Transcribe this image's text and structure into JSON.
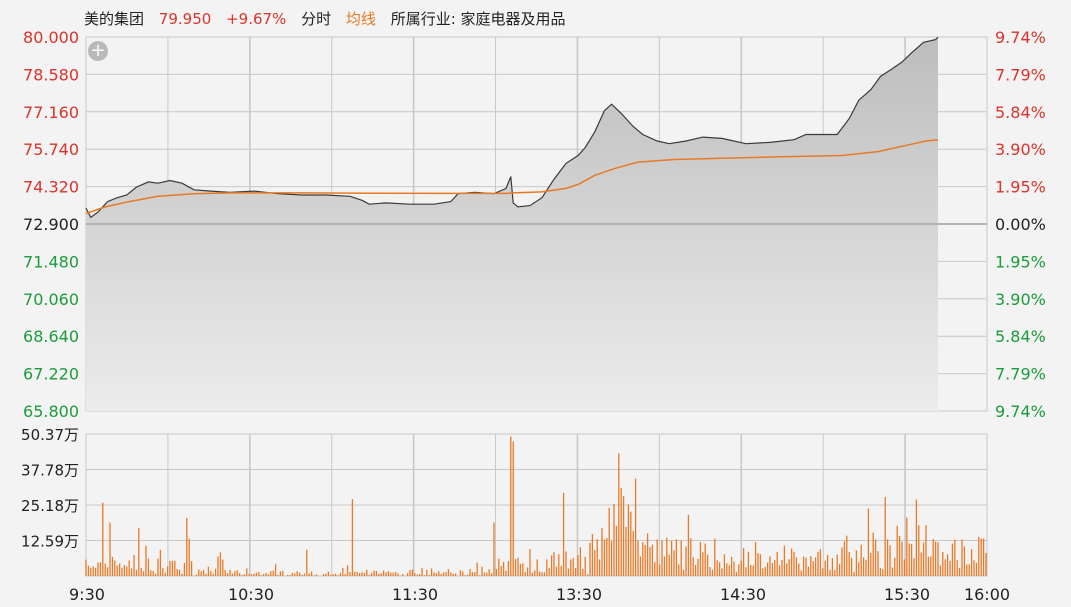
{
  "header": {
    "stock_name": "美的集团",
    "price": "79.950",
    "change_pct": "+9.67%",
    "tab_intraday": "分时",
    "avg_line_label": "均线",
    "industry": "所属行业: 家庭电器及用品"
  },
  "colors": {
    "up": "#d9342b",
    "down": "#1c9c3c",
    "price_line": "#3a3a3a",
    "avg_line": "#e87a26",
    "volume_bar": "#e87a26",
    "area_fill": "#c9c9c9",
    "grid": "#c8c8c8",
    "background": "#f3f3f3"
  },
  "chart_data": [
    {
      "type": "line",
      "name": "intraday_price",
      "prev_close": 72.9,
      "ylim": [
        65.8,
        80.0
      ],
      "y_ticks": [
        "80.000",
        "78.580",
        "77.160",
        "75.740",
        "74.320",
        "72.900",
        "71.480",
        "70.060",
        "68.640",
        "67.220",
        "65.800"
      ],
      "pct_ticks": [
        "9.74%",
        "7.79%",
        "5.84%",
        "3.90%",
        "1.95%",
        "0.00%",
        "1.95%",
        "3.90%",
        "5.84%",
        "7.79%",
        "9.74%"
      ],
      "x_ticks": [
        "9:30",
        "10:30",
        "11:30",
        "13:30",
        "14:30",
        "15:30",
        "16:00"
      ],
      "price": [
        [
          0,
          73.5
        ],
        [
          2,
          73.15
        ],
        [
          5,
          73.35
        ],
        [
          9,
          73.75
        ],
        [
          13,
          73.9
        ],
        [
          17,
          74.0
        ],
        [
          21,
          74.3
        ],
        [
          26,
          74.5
        ],
        [
          30,
          74.45
        ],
        [
          35,
          74.55
        ],
        [
          40,
          74.45
        ],
        [
          45,
          74.2
        ],
        [
          52,
          74.15
        ],
        [
          60,
          74.1
        ],
        [
          70,
          74.15
        ],
        [
          80,
          74.05
        ],
        [
          90,
          74.0
        ],
        [
          100,
          74.0
        ],
        [
          110,
          73.95
        ],
        [
          115,
          73.8
        ],
        [
          118,
          73.65
        ],
        [
          125,
          73.7
        ],
        [
          135,
          73.65
        ],
        [
          145,
          73.65
        ],
        [
          152,
          73.75
        ],
        [
          155,
          74.05
        ],
        [
          162,
          74.1
        ],
        [
          170,
          74.05
        ],
        [
          175,
          74.25
        ],
        [
          177,
          74.7
        ],
        [
          178,
          73.7
        ],
        [
          180,
          73.55
        ],
        [
          185,
          73.6
        ],
        [
          190,
          73.9
        ],
        [
          195,
          74.6
        ],
        [
          200,
          75.2
        ],
        [
          205,
          75.5
        ],
        [
          208,
          75.8
        ],
        [
          212,
          76.4
        ],
        [
          216,
          77.2
        ],
        [
          219,
          77.45
        ],
        [
          223,
          77.1
        ],
        [
          228,
          76.6
        ],
        [
          232,
          76.3
        ],
        [
          238,
          76.05
        ],
        [
          243,
          75.95
        ],
        [
          250,
          76.05
        ],
        [
          257,
          76.2
        ],
        [
          265,
          76.15
        ],
        [
          275,
          75.95
        ],
        [
          285,
          76.0
        ],
        [
          295,
          76.1
        ],
        [
          300,
          76.3
        ],
        [
          305,
          76.3
        ],
        [
          313,
          76.3
        ],
        [
          318,
          76.9
        ],
        [
          322,
          77.6
        ],
        [
          327,
          78.0
        ],
        [
          331,
          78.5
        ],
        [
          336,
          78.8
        ],
        [
          340,
          79.05
        ],
        [
          344,
          79.4
        ],
        [
          349,
          79.8
        ],
        [
          354,
          79.9
        ],
        [
          355,
          80.0
        ]
      ],
      "avg": [
        [
          0,
          73.3
        ],
        [
          8,
          73.55
        ],
        [
          18,
          73.75
        ],
        [
          30,
          73.95
        ],
        [
          45,
          74.05
        ],
        [
          60,
          74.08
        ],
        [
          90,
          74.08
        ],
        [
          120,
          74.07
        ],
        [
          150,
          74.06
        ],
        [
          175,
          74.06
        ],
        [
          178,
          74.08
        ],
        [
          190,
          74.12
        ],
        [
          200,
          74.25
        ],
        [
          205,
          74.4
        ],
        [
          212,
          74.75
        ],
        [
          220,
          75.0
        ],
        [
          230,
          75.25
        ],
        [
          245,
          75.35
        ],
        [
          265,
          75.4
        ],
        [
          290,
          75.45
        ],
        [
          315,
          75.5
        ],
        [
          330,
          75.65
        ],
        [
          340,
          75.85
        ],
        [
          350,
          76.05
        ],
        [
          355,
          76.1
        ]
      ]
    },
    {
      "type": "bar",
      "name": "volume",
      "unit": "万",
      "ylim": [
        0,
        50.37
      ],
      "y_ticks": [
        "50.37万",
        "37.78万",
        "25.18万",
        "12.59万"
      ],
      "volume_values": [
        5.8,
        3.7,
        2.9,
        3.4,
        2.9,
        4.8,
        4.8,
        26.0,
        4.4,
        3.1,
        19.0,
        6.8,
        5.5,
        3.7,
        4.4,
        2.9,
        3.9,
        3.3,
        5.5,
        2.7,
        7.4,
        2.2,
        17.0,
        2.9,
        1.7,
        10.8,
        6.2,
        2.1,
        1.8,
        0.8,
        6.2,
        9.3,
        2.8,
        1.1,
        3.4,
        5.4,
        5.4,
        5.4,
        2.5,
        2.2,
        0.8,
        4.6,
        20.6,
        13.2,
        5.3,
        0.1,
        0.5,
        2.3,
        1.7,
        2.2,
        0.9,
        3.3,
        1.8,
        0.8,
        2.6,
        6.9,
        8.4,
        5.8,
        2.1,
        1.0,
        2.2,
        0.9,
        1.7,
        2.1,
        1.0,
        0.4,
        0.6,
        2.7,
        0.8,
        0.6,
        0.8,
        1.2,
        1.5,
        0.3,
        0.7,
        1.1,
        0.6,
        1.7,
        1.9,
        4.2,
        0.4,
        1.7,
        1.8,
        0.0,
        0.4,
        0.4,
        1.1,
        0.9,
        1.7,
        1.2,
        0.4,
        0.9,
        9.3,
        0.9,
        1.6,
        0.2,
        0.6,
        0.1,
        0.1,
        0.7,
        0.8,
        1.6,
        0.4,
        0.6,
        0.8,
        0.3,
        1.1,
        2.9,
        0.7,
        3.8,
        1.4,
        27.3,
        1.5,
        1.4,
        1.0,
        1.3,
        1.1,
        2.2,
        0.4,
        1.1,
        1.9,
        1.8,
        0.8,
        1.0,
        1.9,
        1.3,
        1.7,
        1.2,
        1.2,
        1.5,
        0.9,
        0.1,
        0.7,
        0.1,
        1.1,
        2.1,
        2.3,
        1.0,
        0.5,
        0.7,
        2.9,
        0.3,
        2.2,
        0.3,
        2.7,
        1.3,
        1.0,
        1.7,
        0.7,
        1.3,
        1.4,
        2.4,
        1.2,
        0.8,
        0.9,
        0.0,
        2.1,
        1.6,
        0.3,
        0.5,
        2.4,
        1.4,
        1.4,
        4.8,
        0.3,
        3.3,
        1.2,
        1.2,
        2.4,
        1.0,
        19.0,
        2.5,
        6.1,
        3.6,
        5.0,
        1.8,
        5.3,
        49.5,
        47.7,
        6.0,
        6.5,
        4.3,
        4.5,
        1.4,
        3.0,
        9.6,
        1.2,
        2.0,
        5.9,
        1.6,
        1.3,
        1.3,
        5.9,
        2.8,
        7.3,
        8.4,
        3.3,
        7.7,
        3.5,
        29.5,
        8.7,
        2.6,
        5.8,
        6.4,
        2.8,
        7.4,
        10.2,
        2.5,
        6.8,
        0.6,
        11.8,
        14.9,
        9.2,
        13.1,
        5.9,
        17.0,
        12.9,
        13.5,
        24.2,
        12.4,
        25.5,
        17.8,
        43.5,
        31.3,
        28.3,
        17.4,
        25.4,
        22.8,
        16.0,
        34.6,
        12.6,
        6.9,
        12.0,
        11.0,
        15.1,
        10.3,
        11.1,
        4.9,
        13.0,
        4.1,
        12.7,
        6.9,
        13.6,
        7.6,
        12.4,
        9.1,
        13.0,
        4.1,
        12.6,
        2.2,
        10.5,
        21.7,
        13.4,
        6.7,
        3.9,
        6.1,
        12.1,
        8.4,
        11.5,
        7.6,
        3.2,
        2.2,
        13.3,
        5.6,
        4.9,
        2.7,
        7.7,
        4.5,
        3.8,
        6.8,
        5.1,
        1.5,
        4.2,
        5.4,
        9.9,
        3.1,
        8.6,
        3.9,
        3.7,
        12.0,
        8.1,
        7.7,
        2.7,
        3.2,
        4.8,
        7.0,
        4.6,
        5.6,
        8.5,
        3.8,
        5.7,
        10.8,
        4.5,
        6.0,
        9.8,
        8.6,
        6.6,
        4.4,
        2.0,
        6.9,
        6.5,
        3.3,
        7.1,
        5.2,
        6.6,
        8.6,
        9.5,
        2.7,
        5.4,
        7.5,
        2.2,
        6.3,
        2.1,
        7.6,
        4.3,
        10.1,
        12.3,
        14.3,
        8.5,
        6.4,
        1.5,
        9.1,
        4.9,
        11.1,
        6.6,
        5.6,
        23.9,
        8.2,
        15.4,
        12.9,
        8.8,
        2.8,
        2.4,
        28.0,
        13.0,
        10.9,
        3.0,
        6.5,
        17.8,
        14.2,
        12.2,
        5.9,
        20.7,
        11.6,
        11.4,
        6.3,
        27.1,
        18.0,
        8.3,
        11.9,
        18.0,
        6.8,
        7.0,
        13.1,
        12.2,
        12.0,
        3.7,
        8.5,
        5.9,
        7.7,
        5.4,
        11.5,
        12.9,
        5.6,
        2.8,
        13.0,
        10.5,
        4.1,
        4.1,
        9.5,
        5.6,
        4.7,
        13.9,
        13.3,
        13.3,
        8.2
      ]
    }
  ]
}
